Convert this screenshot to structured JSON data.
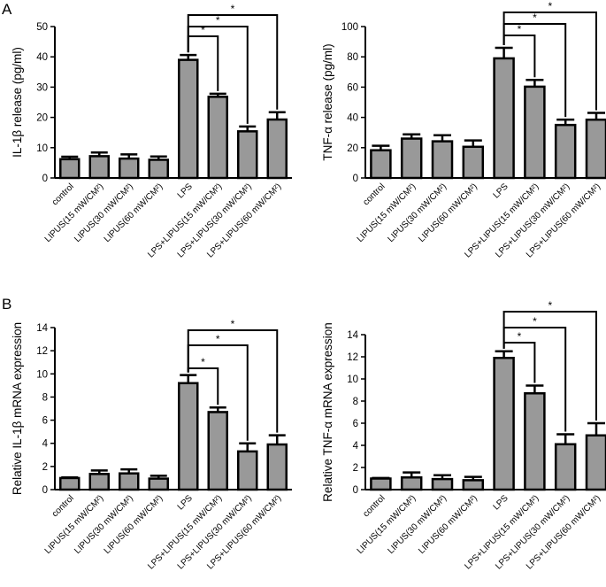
{
  "panel_labels": [
    "A",
    "B"
  ],
  "chart_data": [
    {
      "type": "bar",
      "ylabel": "IL-1β release (pg/ml)",
      "ylim": [
        0,
        50
      ],
      "yticks": [
        0,
        10,
        20,
        30,
        40,
        50
      ],
      "categories": [
        "control",
        "LIPUS(15 mW/CM²)",
        "LIPUS(30 mW/CM²)",
        "LIPUS(60 mW/CM²)",
        "LPS",
        "LPS+LIPUS(15 mW/CM²)",
        "LPS+LIPUS(30 mW/CM²)",
        "LPS+LIPUS(60 mW/CM²)"
      ],
      "values": [
        6.2,
        7.2,
        6.4,
        6.0,
        39.0,
        26.8,
        15.4,
        19.3
      ],
      "errors": [
        0.8,
        1.2,
        1.4,
        1.1,
        1.6,
        1.0,
        1.6,
        2.4
      ],
      "significance": [
        {
          "from": 4,
          "to": 5,
          "label": "*"
        },
        {
          "from": 4,
          "to": 6,
          "label": "*"
        },
        {
          "from": 4,
          "to": 7,
          "label": "*"
        }
      ]
    },
    {
      "type": "bar",
      "ylabel": "TNF-α release (pg/ml)",
      "ylim": [
        0,
        100
      ],
      "yticks": [
        0,
        20,
        40,
        60,
        80,
        100
      ],
      "categories": [
        "control",
        "LIPUS(15 mW/CM²)",
        "LIPUS(30 mW/CM²)",
        "LIPUS(60 mW/CM²)",
        "LPS",
        "LPS+LIPUS(15 mW/CM²)",
        "LPS+LIPUS(30 mW/CM²)",
        "LPS+LIPUS(60 mW/CM²)"
      ],
      "values": [
        18.3,
        26.0,
        24.2,
        20.6,
        79.0,
        60.3,
        35.0,
        38.5
      ],
      "errors": [
        3.0,
        2.8,
        4.0,
        4.2,
        7.0,
        4.5,
        3.5,
        4.5
      ],
      "significance": [
        {
          "from": 4,
          "to": 5,
          "label": "*"
        },
        {
          "from": 4,
          "to": 6,
          "label": "*"
        },
        {
          "from": 4,
          "to": 7,
          "label": "*"
        }
      ]
    },
    {
      "type": "bar",
      "ylabel": "Relative IL-1β mRNA expression",
      "ylim": [
        0,
        14
      ],
      "yticks": [
        0,
        2,
        4,
        6,
        8,
        10,
        12,
        14
      ],
      "categories": [
        "control",
        "LIPUS(15 mW/CM²)",
        "LIPUS(30 mW/CM²)",
        "LIPUS(60 mW/CM²)",
        "LPS",
        "LPS+LIPUS(15 mW/CM²)",
        "LPS+LIPUS(30 mW/CM²)",
        "LPS+LIPUS(60 mW/CM²)"
      ],
      "values": [
        1.0,
        1.35,
        1.4,
        0.95,
        9.2,
        6.7,
        3.3,
        3.9
      ],
      "errors": [
        0.05,
        0.3,
        0.35,
        0.25,
        0.7,
        0.4,
        0.7,
        0.8
      ],
      "significance": [
        {
          "from": 4,
          "to": 5,
          "label": "*"
        },
        {
          "from": 4,
          "to": 6,
          "label": "*"
        },
        {
          "from": 4,
          "to": 7,
          "label": "*"
        }
      ]
    },
    {
      "type": "bar",
      "ylabel": "Relative TNF-α mRNA expression",
      "ylim": [
        0,
        14
      ],
      "yticks": [
        0,
        2,
        4,
        6,
        8,
        10,
        12,
        14
      ],
      "categories": [
        "control",
        "LIPUS(15 mW/CM²)",
        "LIPUS(30 mW/CM²)",
        "LIPUS(60 mW/CM²)",
        "LPS",
        "LPS+LIPUS(15 mW/CM²)",
        "LPS+LIPUS(30 mW/CM²)",
        "LPS+LIPUS(60 mW/CM²)"
      ],
      "values": [
        1.0,
        1.1,
        0.95,
        0.85,
        11.9,
        8.7,
        4.1,
        4.9
      ],
      "errors": [
        0.05,
        0.45,
        0.35,
        0.3,
        0.6,
        0.7,
        0.9,
        1.1
      ],
      "significance": [
        {
          "from": 4,
          "to": 5,
          "label": "*"
        },
        {
          "from": 4,
          "to": 6,
          "label": "*"
        },
        {
          "from": 4,
          "to": 7,
          "label": "*"
        }
      ]
    }
  ],
  "colors": {
    "bar_fill": "#999999",
    "stroke": "#000000"
  }
}
